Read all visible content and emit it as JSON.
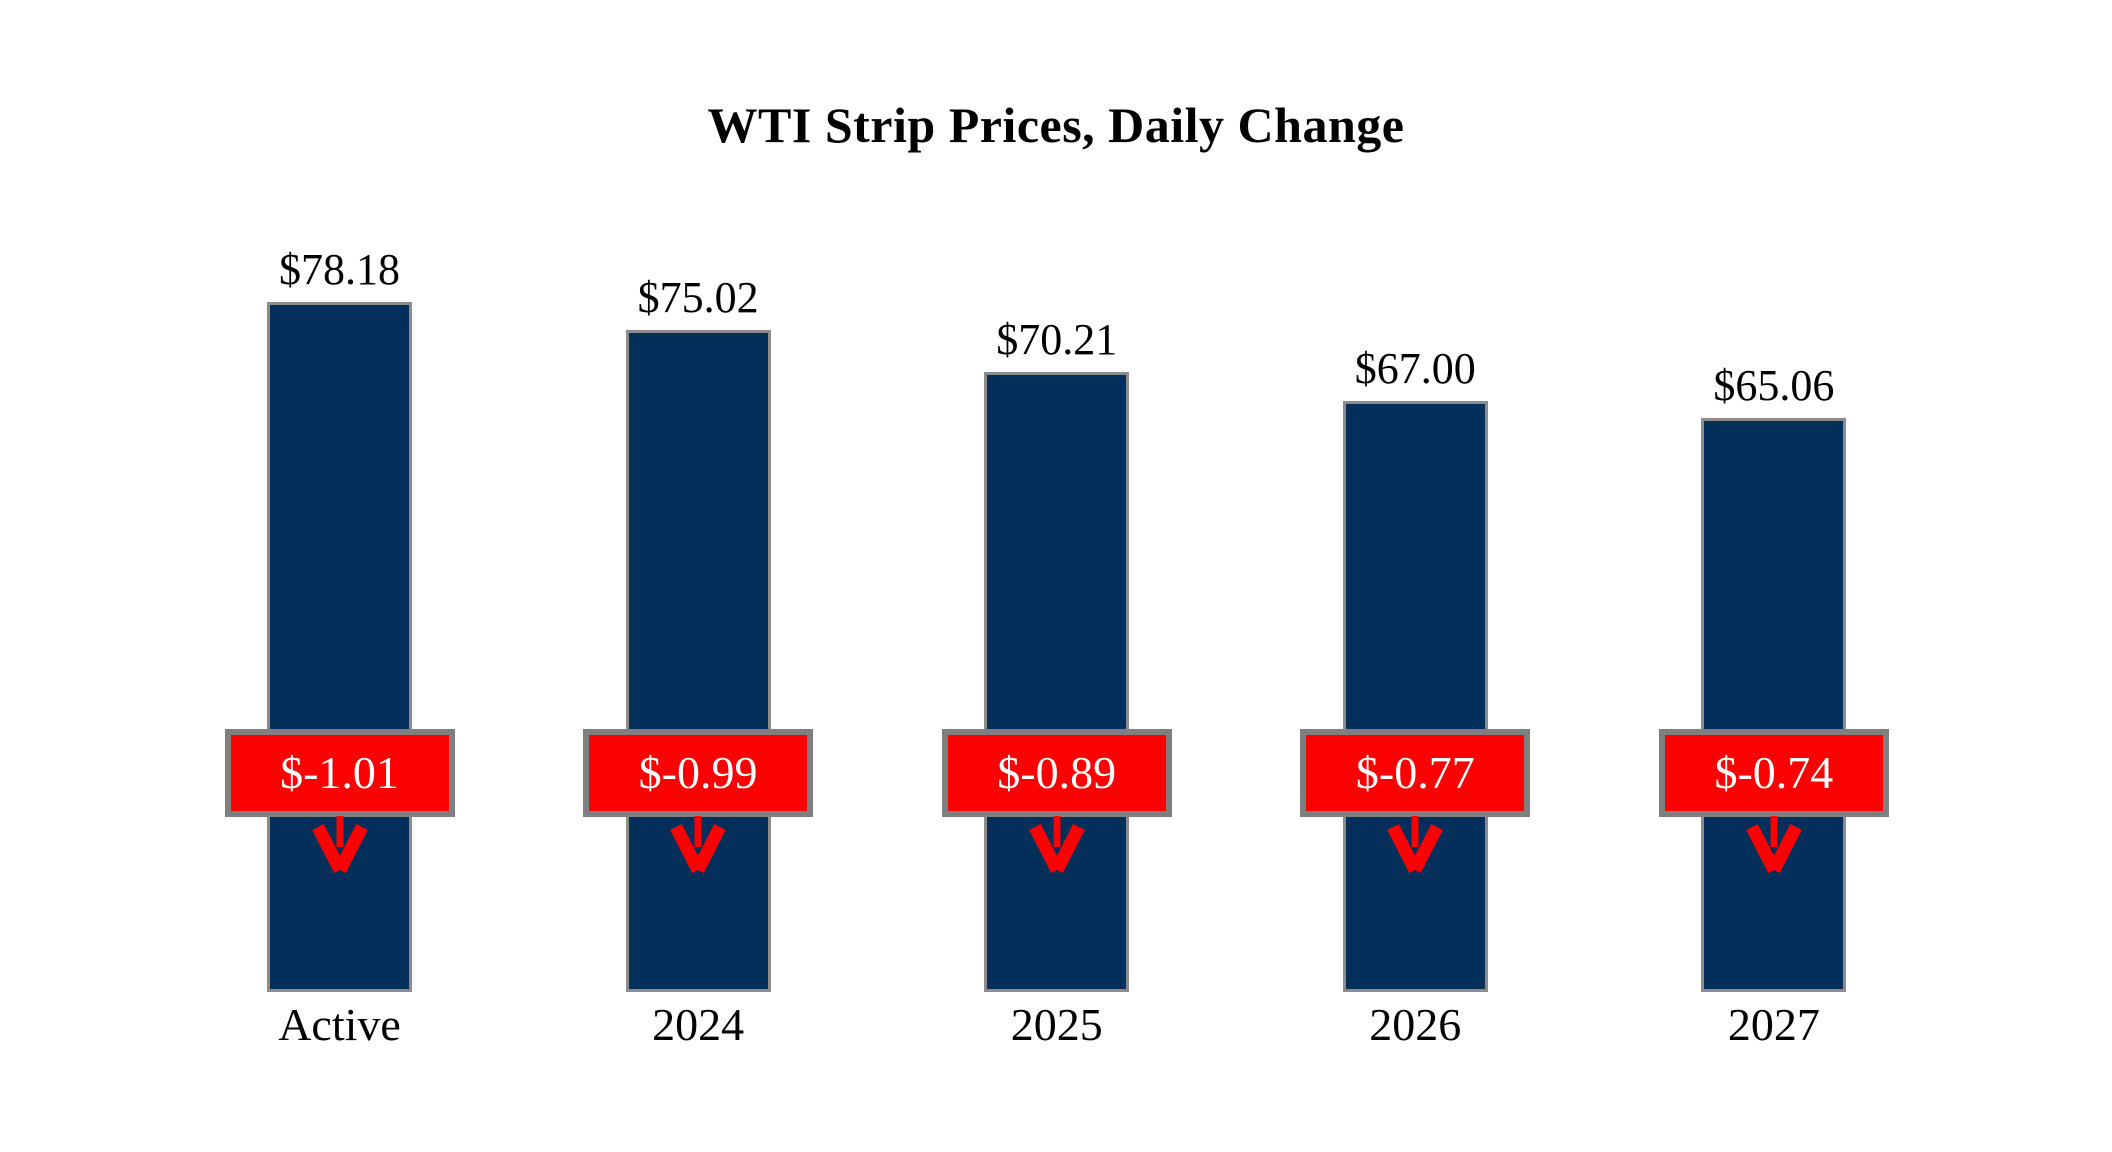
{
  "title": "WTI Strip Prices, Daily Change",
  "chart_data": {
    "type": "bar",
    "title": "WTI Strip Prices, Daily Change",
    "categories": [
      "Active",
      "2024",
      "2025",
      "2026",
      "2027"
    ],
    "series": [
      {
        "name": "Strip Price",
        "values": [
          78.18,
          75.02,
          70.21,
          67.0,
          65.06
        ]
      },
      {
        "name": "Daily Change",
        "values": [
          -1.01,
          -0.99,
          -0.89,
          -0.77,
          -0.74
        ]
      }
    ],
    "value_labels": [
      "$78.18",
      "$75.02",
      "$70.21",
      "$67.00",
      "$65.06"
    ],
    "change_labels": [
      "$-1.01",
      "$-0.99",
      "$-0.89",
      "$-0.77",
      "$-0.74"
    ],
    "xlabel": "",
    "ylabel": "",
    "ylim": [
      0,
      85
    ],
    "grid": false,
    "legend": "none",
    "colors": {
      "bar_fill": "#042F5A",
      "bar_border": "#8C8C8C",
      "badge_fill": "#FA0202",
      "badge_border": "#7F7F7F",
      "badge_text": "#FFFFFF",
      "arrow": "#FA0202",
      "label_text": "#000000",
      "background": "#FFFFFF"
    }
  }
}
